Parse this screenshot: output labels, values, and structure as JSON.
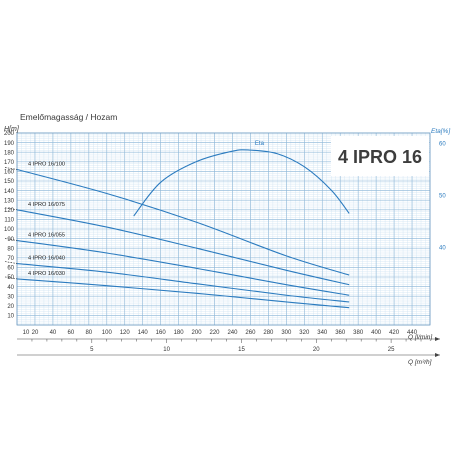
{
  "chart_data": {
    "type": "line",
    "title": "Emelőmagasság / Hozam",
    "model": "4 IPRO 16",
    "y_axis": {
      "label": "H[m]",
      "range": [
        0,
        200
      ],
      "ticks": [
        10,
        20,
        30,
        40,
        50,
        60,
        70,
        80,
        90,
        100,
        110,
        120,
        130,
        140,
        150,
        160,
        170,
        180,
        190,
        200
      ]
    },
    "x_axis_primary": {
      "label": "Q [l/min]",
      "range": [
        0,
        460
      ],
      "ticks": [
        10,
        20,
        40,
        60,
        80,
        100,
        120,
        140,
        160,
        180,
        200,
        220,
        240,
        260,
        280,
        300,
        320,
        340,
        360,
        380,
        400,
        420,
        440
      ]
    },
    "x_axis_secondary": {
      "label": "Q [m³/h]",
      "ticks": [
        5,
        10,
        15,
        20,
        25
      ]
    },
    "eta_axis": {
      "label": "Eta[%]",
      "range": [
        25,
        62
      ],
      "ticks": [
        40,
        50,
        60
      ]
    },
    "grid": true,
    "series": [
      {
        "name": "4 IPRO 16/100",
        "x": [
          0,
          100,
          200,
          300,
          370
        ],
        "y": [
          162,
          137,
          107,
          72,
          52
        ]
      },
      {
        "name": "4 IPRO 16/075",
        "x": [
          0,
          100,
          200,
          300,
          370
        ],
        "y": [
          120,
          102,
          80,
          57,
          42
        ]
      },
      {
        "name": "4 IPRO 16/055",
        "x": [
          0,
          100,
          200,
          300,
          370
        ],
        "y": [
          88,
          75,
          59,
          42,
          31
        ]
      },
      {
        "name": "4 IPRO 16/040",
        "x": [
          0,
          100,
          200,
          300,
          370
        ],
        "y": [
          64,
          55,
          43,
          31,
          24
        ]
      },
      {
        "name": "4 IPRO 16/030",
        "x": [
          0,
          100,
          200,
          300,
          370
        ],
        "y": [
          48,
          41,
          33,
          24,
          18
        ]
      }
    ],
    "eta_curve": {
      "name": "Eta",
      "x": [
        130,
        160,
        200,
        240,
        260,
        290,
        320,
        350,
        370
      ],
      "y": [
        46,
        52.5,
        56.5,
        58.5,
        58.7,
        58,
        55.5,
        51,
        46.5
      ]
    }
  }
}
